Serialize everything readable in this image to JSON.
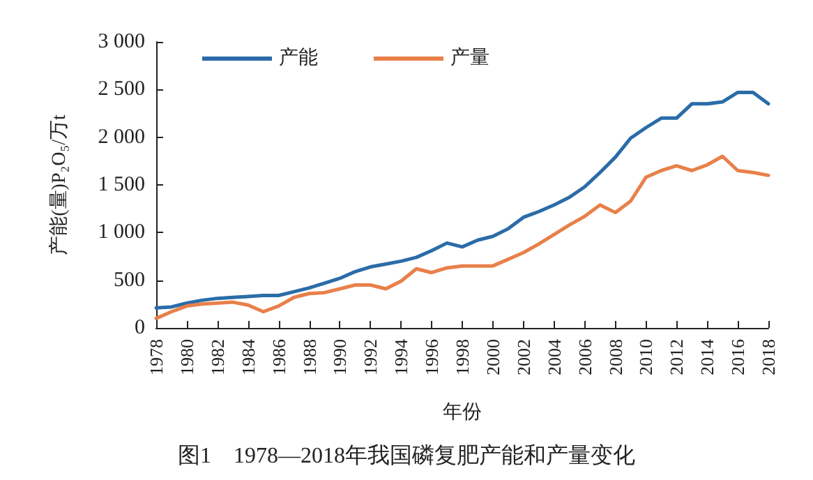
{
  "chart_data": {
    "type": "line",
    "title": "图1　1978—2018年我国磷复肥产能和产量变化",
    "xlabel": "年份",
    "ylabel": "产能(量)P₂O₅/万t",
    "categories": [
      "1978",
      null,
      "1980",
      null,
      "1982",
      null,
      "1984",
      null,
      "1986",
      null,
      "1988",
      null,
      "1990",
      null,
      "1992",
      null,
      "1994",
      null,
      "1996",
      null,
      "1998",
      null,
      "2000",
      null,
      "2002",
      null,
      "2004",
      null,
      "2006",
      null,
      "2008",
      null,
      "2010",
      null,
      "2012",
      null,
      "2014",
      null,
      "2016",
      null,
      "2018"
    ],
    "series": [
      {
        "name": "产能",
        "color": "#2b6ca8",
        "values": [
          210,
          220,
          260,
          290,
          310,
          320,
          330,
          340,
          340,
          380,
          420,
          470,
          520,
          590,
          640,
          670,
          700,
          740,
          810,
          890,
          850,
          920,
          960,
          1040,
          1160,
          1220,
          1290,
          1370,
          1480,
          1630,
          1790,
          1990,
          2100,
          2200,
          2200,
          2350,
          2350,
          2370,
          2470,
          2470,
          2350
        ]
      },
      {
        "name": "产量",
        "color": "#e8804a",
        "values": [
          100,
          170,
          230,
          250,
          260,
          270,
          240,
          170,
          230,
          320,
          360,
          370,
          410,
          450,
          450,
          410,
          490,
          620,
          580,
          630,
          650,
          650,
          650,
          720,
          790,
          880,
          980,
          1080,
          1170,
          1290,
          1210,
          1330,
          1580,
          1650,
          1700,
          1650,
          1710,
          1800,
          1650,
          1630,
          1600
        ]
      }
    ],
    "ylim": [
      0,
      3000
    ],
    "yticks": [
      0,
      500,
      {
        "value": 1000,
        "label": "1 000"
      },
      {
        "value": 1500,
        "label": "1 500"
      },
      {
        "value": 2000,
        "label": "2 000"
      },
      {
        "value": 2500,
        "label": "2 500"
      },
      {
        "value": 3000,
        "label": "3 000"
      }
    ],
    "grid": false,
    "legend": "top left",
    "marker": "none",
    "line_style": "solid"
  }
}
